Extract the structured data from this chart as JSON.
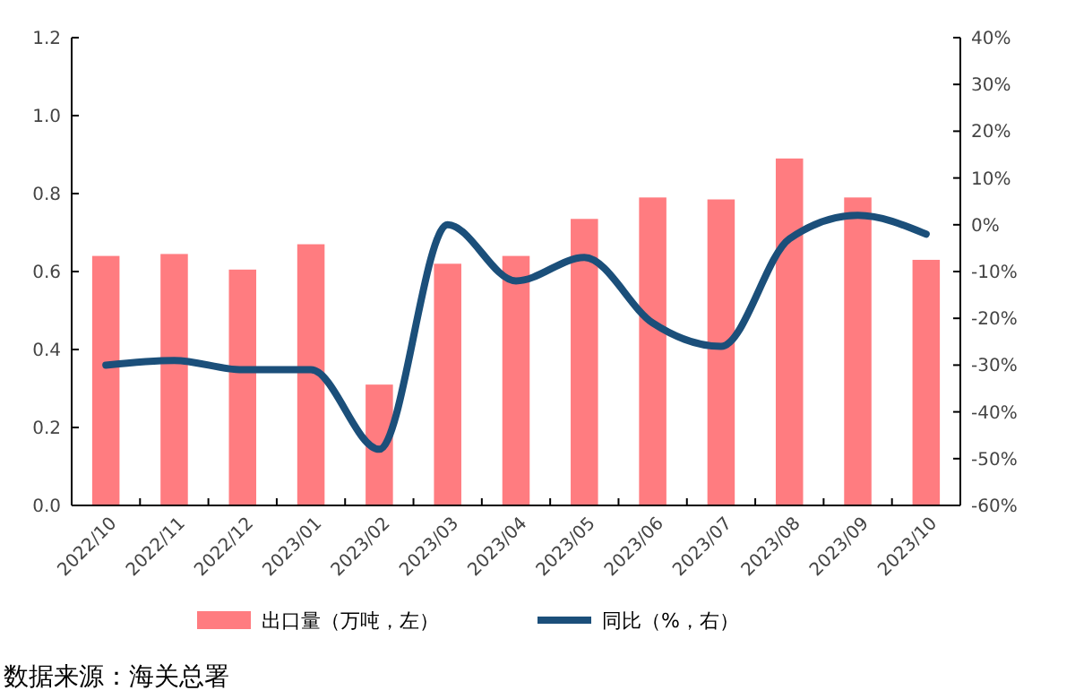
{
  "chart_data": {
    "type": "bar",
    "categories": [
      "2022/10",
      "2022/11",
      "2022/12",
      "2023/01",
      "2023/02",
      "2023/03",
      "2023/04",
      "2023/05",
      "2023/06",
      "2023/07",
      "2023/08",
      "2023/09",
      "2023/10"
    ],
    "series": [
      {
        "name": "出口量（万吨，左）",
        "color": "#ff7c80",
        "values": [
          0.64,
          0.645,
          0.605,
          0.67,
          0.31,
          0.62,
          0.64,
          0.735,
          0.79,
          0.785,
          0.89,
          0.79,
          0.63
        ]
      },
      {
        "name": "同比（%，右）",
        "type": "line",
        "axis": "y2",
        "color": "#1b4f7a",
        "values": [
          -30,
          -29,
          -31,
          -31,
          -48,
          0,
          -12,
          -7,
          -21,
          -26,
          -3,
          2,
          -2
        ]
      }
    ],
    "ylim": [
      0,
      1.2
    ],
    "yticks": [
      {
        "value": 0,
        "label": "0.0"
      },
      {
        "value": 0.2,
        "label": "0.2"
      },
      {
        "value": 0.4,
        "label": "0.4"
      },
      {
        "value": 0.6,
        "label": "0.6"
      },
      {
        "value": 0.8,
        "label": "0.8"
      },
      {
        "value": 1,
        "label": "1.0"
      },
      {
        "value": 1.2,
        "label": "1.2"
      }
    ],
    "y2lim": [
      -60,
      40
    ],
    "y2ticks": [
      {
        "value": -60,
        "label": "-60%"
      },
      {
        "value": -50,
        "label": "-50%"
      },
      {
        "value": -40,
        "label": "-40%"
      },
      {
        "value": -30,
        "label": "-30%"
      },
      {
        "value": -20,
        "label": "-20%"
      },
      {
        "value": -10,
        "label": "-10%"
      },
      {
        "value": 0,
        "label": "0%"
      },
      {
        "value": 10,
        "label": "10%"
      },
      {
        "value": 20,
        "label": "20%"
      },
      {
        "value": 30,
        "label": "30%"
      },
      {
        "value": 40,
        "label": "40%"
      }
    ],
    "legend": "bottom",
    "grid": false,
    "annotations": [
      "数据来源：海关总署"
    ]
  }
}
